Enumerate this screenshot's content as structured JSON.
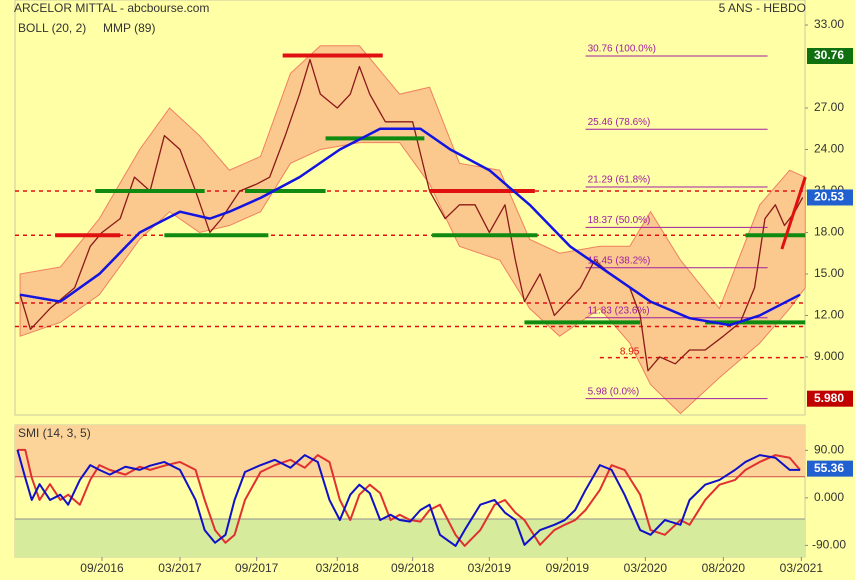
{
  "chart_data": [
    {
      "type": "line",
      "title": "ARCELOR MITTAL - abcbourse.com",
      "subtitle": "5 ANS - HEBDO",
      "xlim": [
        -6.69,
        54.08
      ],
      "ylim": [
        4.8,
        34.81
      ],
      "yticks": [
        {
          "value": 33,
          "label": "33.00"
        },
        {
          "value": 27,
          "label": "27.00"
        },
        {
          "value": 24,
          "label": "24.00"
        },
        {
          "value": 21,
          "label": "21.00"
        },
        {
          "value": 18,
          "label": "18.00"
        },
        {
          "value": 15,
          "label": "15.00"
        },
        {
          "value": 12,
          "label": "12.00"
        },
        {
          "value": 9,
          "label": "9.000"
        }
      ],
      "price": {
        "color": "#8b1a1a",
        "x": [
          -6.3,
          -5.5,
          -4,
          -2.1,
          -0.9,
          0,
          1.4,
          2.5,
          3.7,
          4.8,
          6,
          7.2,
          8.3,
          9.2,
          10.6,
          11.9,
          12.9,
          14.1,
          15.2,
          16,
          16.8,
          18.1,
          19.1,
          19.8,
          20.6,
          21.8,
          22.9,
          23.9,
          25.2,
          26.4,
          27.5,
          28.7,
          29.8,
          31,
          31.8,
          32.5,
          33.7,
          34.8,
          35.8,
          36.8,
          37.9,
          39.1,
          40.6,
          41.4,
          42,
          42.9,
          44.1,
          45.2,
          46.4,
          47.8,
          49.1,
          50.2,
          51,
          51.8,
          52.5,
          53.3,
          53.9
        ],
        "values": [
          13.5,
          11,
          12.5,
          14,
          17,
          18,
          19,
          22,
          21,
          25,
          24,
          21,
          18,
          19,
          21,
          21.5,
          22,
          25,
          28,
          30.5,
          28,
          27,
          28,
          30,
          28,
          26,
          26,
          26,
          21,
          19,
          20,
          20,
          18,
          20,
          16,
          13,
          15,
          12,
          13,
          14,
          16,
          15,
          14,
          12,
          8,
          9,
          8.5,
          9.5,
          9.5,
          10.5,
          11.5,
          14,
          19,
          20,
          18.5,
          19.5,
          20.53
        ]
      },
      "bollinger": {
        "name": "BOLL (20, 2)",
        "color": "#f08060",
        "fill": "#fbc98e",
        "x": [
          -6.3,
          -3.2,
          -0.2,
          2.9,
          5.2,
          7.5,
          9.8,
          12.2,
          14.5,
          16.8,
          19.8,
          22.9,
          25.2,
          27.5,
          30.6,
          32.9,
          35.2,
          38.3,
          40.6,
          42.2,
          44.5,
          47.5,
          50.6,
          52.9,
          54.1
        ],
        "upper": [
          15,
          15.5,
          19,
          24,
          27,
          25,
          22.5,
          23.5,
          29.5,
          31.5,
          31.5,
          28,
          28.5,
          23,
          22.5,
          17.5,
          16.5,
          17,
          17,
          19.5,
          16,
          12.5,
          20,
          22.5,
          22
        ],
        "lower": [
          10.5,
          11.5,
          13.5,
          17.5,
          19.5,
          18,
          18.5,
          19.5,
          23,
          24,
          24.5,
          24.5,
          21.5,
          17,
          16,
          12.5,
          10.5,
          12.5,
          10,
          7,
          4.9,
          7.5,
          10,
          12.5,
          14
        ]
      },
      "series": [
        {
          "name": "MMP (89)",
          "color": "#1414e0",
          "x": [
            -6.3,
            -3.2,
            -0.2,
            2.9,
            6,
            8.3,
            9.8,
            12.2,
            15.2,
            18.3,
            21.4,
            24.5,
            26.8,
            29.8,
            32.9,
            36,
            39.1,
            42.2,
            45.2,
            48.3,
            50.6,
            53.7
          ],
          "values": [
            13.5,
            13,
            15,
            18,
            19.5,
            19,
            19.5,
            20.5,
            22,
            24,
            25.5,
            25.5,
            24,
            22.5,
            20,
            17,
            15,
            13,
            11.8,
            11.3,
            12,
            13.5
          ]
        }
      ],
      "fibonacci": {
        "color": "#a020a0",
        "x": [
          37.2,
          51.2
        ],
        "levels": [
          {
            "value": 30.76,
            "label": "30.76 (100.0%)"
          },
          {
            "value": 25.46,
            "label": "25.46 (78.6%)"
          },
          {
            "value": 21.29,
            "label": "21.29 (61.8%)"
          },
          {
            "value": 18.37,
            "label": "18.37 (50.0%)"
          },
          {
            "value": 15.45,
            "label": "15.45 (38.2%)"
          },
          {
            "value": 11.83,
            "label": "11.83 (23.6%)"
          },
          {
            "value": 5.98,
            "label": "5.98 (0.0%)"
          }
        ]
      },
      "support_lines": [
        {
          "x": [
            -3.6,
            1.4
          ],
          "y": 17.8,
          "color": "#e01010"
        },
        {
          "x": [
            -0.5,
            7.9
          ],
          "y": 21,
          "color": "#108a10"
        },
        {
          "x": [
            4.8,
            12.8
          ],
          "y": 17.8,
          "color": "#108a10"
        },
        {
          "x": [
            11,
            17.2
          ],
          "y": 21,
          "color": "#108a10"
        },
        {
          "x": [
            13.9,
            21.6
          ],
          "y": 30.8,
          "color": "#e01010"
        },
        {
          "x": [
            17.2,
            24.8
          ],
          "y": 24.8,
          "color": "#108a10"
        },
        {
          "x": [
            25.2,
            33.3
          ],
          "y": 21,
          "color": "#e01010"
        },
        {
          "x": [
            25.4,
            33.5
          ],
          "y": 17.8,
          "color": "#108a10"
        },
        {
          "x": [
            32.5,
            41.4
          ],
          "y": 11.5,
          "color": "#108a10"
        },
        {
          "x": [
            46.4,
            54.1
          ],
          "y": 11.5,
          "color": "#108a10"
        },
        {
          "x": [
            49.5,
            54.1
          ],
          "y": 17.8,
          "color": "#108a10"
        }
      ],
      "dashed_levels": {
        "color": "#e01010",
        "levels": [
          21,
          17.8,
          12.9,
          11.2
        ]
      },
      "low_level": {
        "value": 8.95,
        "from": 38.3,
        "color": "#e01010"
      },
      "trend_line": {
        "x": [
          52.3,
          54.1
        ],
        "y": [
          16.8,
          22
        ],
        "color": "#e01010"
      },
      "price_tags": [
        {
          "value": 30.76,
          "color": "#107010"
        },
        {
          "value": 20.53,
          "color": "#2060d0"
        },
        {
          "value": 5.98,
          "label": "5.980",
          "color": "#c00000"
        }
      ]
    },
    {
      "type": "line",
      "title": "SMI (14, 3, 5)",
      "xlim": [
        -6.69,
        54.08
      ],
      "ylim": [
        -112,
        138
      ],
      "yticks": [
        {
          "value": 90,
          "label": "90.00"
        },
        {
          "value": 0,
          "label": "0.000"
        },
        {
          "value": -90,
          "label": "-90.00"
        }
      ],
      "zones": {
        "upper": 40,
        "lower": -40,
        "upper_color": "#fcd49a",
        "lower_color": "#d6ec9c"
      },
      "x": [
        -6.5,
        -5.9,
        -5.4,
        -4.8,
        -4,
        -3.2,
        -2.6,
        -1.7,
        -0.9,
        -0.2,
        0.6,
        1.8,
        2.9,
        3.7,
        4.8,
        6,
        7.2,
        7.9,
        8.7,
        9.5,
        10.2,
        11,
        12.2,
        13.3,
        14.5,
        15.6,
        16.6,
        17.5,
        18.3,
        19.1,
        19.8,
        20.6,
        21.4,
        22.2,
        22.9,
        23.7,
        24.5,
        25.2,
        26,
        27.2,
        27.9,
        29.1,
        30.2,
        31,
        31.8,
        32.5,
        33.7,
        34.8,
        35.6,
        36.4,
        37.2,
        38.3,
        39.2,
        40.2,
        41.4,
        42.2,
        43.3,
        44.5,
        45.2,
        46.4,
        47.5,
        48.7,
        49.5,
        50.6,
        51.8,
        52.9,
        53.7
      ],
      "series": [
        {
          "color": "#e03030",
          "values": [
            91,
            91,
            38,
            -4,
            26,
            -4,
            6,
            -13,
            34,
            62,
            53,
            44,
            59,
            53,
            61,
            68,
            53,
            -4,
            -61,
            -85,
            -70,
            -4,
            49,
            62,
            72,
            57,
            81,
            68,
            -4,
            -42,
            6,
            25,
            9,
            -42,
            -32,
            -42,
            -45,
            -23,
            -13,
            -70,
            -91,
            -61,
            -13,
            -4,
            -28,
            -42,
            -89,
            -61,
            -51,
            -42,
            -23,
            15,
            62,
            53,
            6,
            -61,
            -70,
            -42,
            -51,
            -4,
            25,
            34,
            53,
            68,
            81,
            76,
            53
          ]
        },
        {
          "color": "#1010c8",
          "values": [
            91,
            38,
            -4,
            26,
            -4,
            6,
            -13,
            34,
            62,
            53,
            44,
            59,
            53,
            61,
            68,
            53,
            -4,
            -61,
            -85,
            -70,
            -4,
            49,
            62,
            72,
            57,
            81,
            68,
            -4,
            -42,
            6,
            25,
            9,
            -42,
            -32,
            -42,
            -45,
            -23,
            -13,
            -70,
            -91,
            -61,
            -13,
            -4,
            -28,
            -42,
            -89,
            -61,
            -51,
            -42,
            -23,
            15,
            62,
            53,
            6,
            -61,
            -70,
            -42,
            -51,
            -4,
            25,
            34,
            53,
            68,
            81,
            76,
            53,
            53
          ]
        }
      ],
      "last_value": {
        "value": 55.36,
        "color": "#2060d0"
      },
      "xticks": [
        {
          "value": 0,
          "label": "09/2016"
        },
        {
          "value": 6,
          "label": "03/2017"
        },
        {
          "value": 11.9,
          "label": "09/2017"
        },
        {
          "value": 18.1,
          "label": "03/2018"
        },
        {
          "value": 23.9,
          "label": "09/2018"
        },
        {
          "value": 29.8,
          "label": "03/2019"
        },
        {
          "value": 35.8,
          "label": "09/2019"
        },
        {
          "value": 41.8,
          "label": "03/2020"
        },
        {
          "value": 47.8,
          "label": "08/2020"
        },
        {
          "value": 53.8,
          "label": "03/2021"
        }
      ]
    }
  ]
}
